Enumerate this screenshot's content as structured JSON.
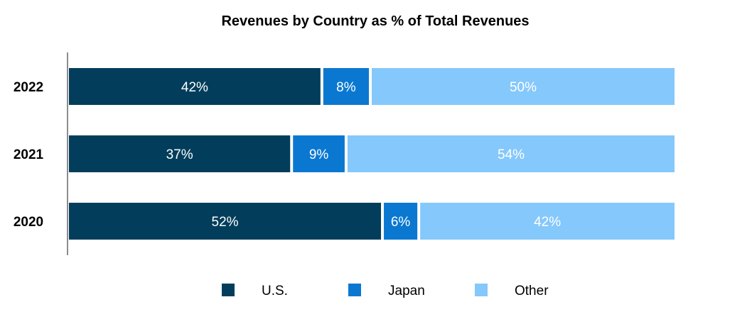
{
  "chart_data": {
    "type": "bar",
    "orientation": "horizontal",
    "stacked": true,
    "title": "Revenues by Country as % of Total Revenues",
    "xlabel": "",
    "ylabel": "",
    "categories": [
      "2022",
      "2021",
      "2020"
    ],
    "series": [
      {
        "name": "U.S.",
        "color": "#023e5b",
        "values": [
          42,
          37,
          52
        ],
        "labels": [
          "42%",
          "37%",
          "52%"
        ]
      },
      {
        "name": "Japan",
        "color": "#0a78d1",
        "values": [
          8,
          9,
          6
        ],
        "labels": [
          "8%",
          "9%",
          "6%"
        ]
      },
      {
        "name": "Other",
        "color": "#85c8fc",
        "values": [
          50,
          54,
          42
        ],
        "labels": [
          "50%",
          "54%",
          "42%"
        ]
      }
    ],
    "xlim": [
      0,
      100
    ],
    "grid": false,
    "legend_position": "bottom"
  }
}
